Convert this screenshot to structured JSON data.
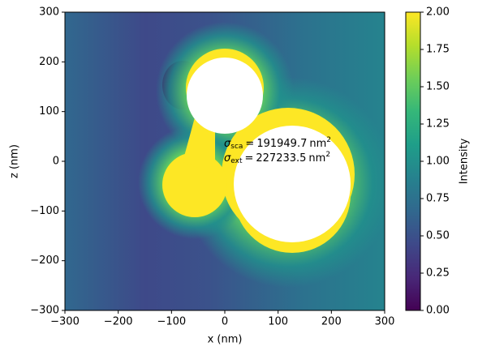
{
  "chart_data": {
    "type": "heatmap",
    "xlabel": "x (nm)",
    "ylabel": "z (nm)",
    "colorbar_label": "Intensity",
    "xlim": [
      -300,
      300
    ],
    "ylim": [
      -300,
      300
    ],
    "xticks": [
      {
        "value": -300,
        "label": "−300"
      },
      {
        "value": -200,
        "label": "−200"
      },
      {
        "value": -100,
        "label": "−100"
      },
      0,
      100,
      200,
      300
    ],
    "yticks": [
      {
        "value": -300,
        "label": "−300"
      },
      {
        "value": -200,
        "label": "−200"
      },
      {
        "value": -100,
        "label": "−100"
      },
      0,
      100,
      200,
      300
    ],
    "clim": [
      0,
      2
    ],
    "cticks": [
      {
        "value": 0,
        "label": "0.00"
      },
      {
        "value": 0.25,
        "label": "0.25"
      },
      {
        "value": 0.5,
        "label": "0.50"
      },
      {
        "value": 0.75,
        "label": "0.75"
      },
      {
        "value": 1,
        "label": "1.00"
      },
      {
        "value": 1.25,
        "label": "1.25"
      },
      {
        "value": 1.5,
        "label": "1.50"
      },
      {
        "value": 1.75,
        "label": "1.75"
      },
      {
        "value": 2,
        "label": "2.00"
      }
    ],
    "colormap": [
      "#440154",
      "#482878",
      "#3e4989",
      "#31688e",
      "#26828e",
      "#1f9e89",
      "#35b779",
      "#6ece58",
      "#b5de2b",
      "#fde725"
    ],
    "annotations": [
      {
        "symbol": "σ",
        "sub": "sca",
        "relation": "=",
        "value": "191949.7",
        "unit": "nm",
        "sup": "2"
      },
      {
        "symbol": "σ",
        "sub": "ext",
        "relation": "=",
        "value": "227233.5",
        "unit": "nm",
        "sup": "2"
      }
    ]
  }
}
